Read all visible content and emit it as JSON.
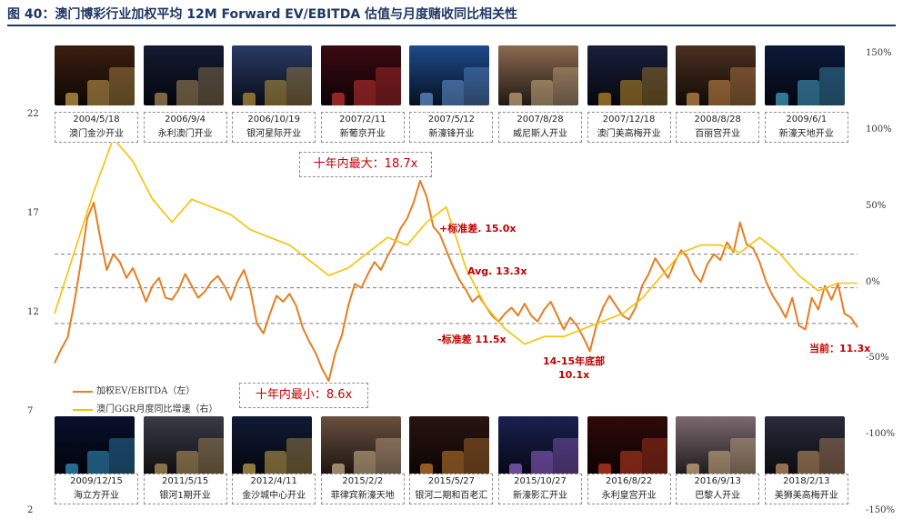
{
  "figure": {
    "title": "图 40：澳门博彩行业加权平均 12M Forward EV/EBITDA 估值与月度赌收同比相关性"
  },
  "photos_top": [
    {
      "date": "2004/5/18",
      "name": "澳门金沙开业",
      "color": "#3a1f0f",
      "light": "#ffcc66"
    },
    {
      "date": "2006/9/4",
      "name": "永利澳门开业",
      "color": "#141a33",
      "light": "#d8b070"
    },
    {
      "date": "2006/10/19",
      "name": "银河星际开业",
      "color": "#2a3a66",
      "light": "#e8b640"
    },
    {
      "date": "2007/2/11",
      "name": "新葡京开业",
      "color": "#3b0a12",
      "light": "#ff4040"
    },
    {
      "date": "2007/5/12",
      "name": "新濠锋开业",
      "color": "#1c4a8a",
      "light": "#7fb6ff"
    },
    {
      "date": "2007/8/28",
      "name": "威尼斯人开业",
      "color": "#8a6a50",
      "light": "#f0d0a0"
    },
    {
      "date": "2007/12/18",
      "name": "澳门美高梅开业",
      "color": "#1a1f3a",
      "light": "#f0b030"
    },
    {
      "date": "2008/8/28",
      "name": "百丽宫开业",
      "color": "#4a3020",
      "light": "#ffb060"
    },
    {
      "date": "2009/6/1",
      "name": "新濠天地开业",
      "color": "#0c1a3a",
      "light": "#5ad0ff"
    }
  ],
  "photos_bottom": [
    {
      "date": "2009/12/15",
      "name": "海立方开业",
      "color": "#08102a",
      "light": "#40c0ff"
    },
    {
      "date": "2011/5/15",
      "name": "银河1期开业",
      "color": "#3a3a46",
      "light": "#e8c070"
    },
    {
      "date": "2012/4/11",
      "name": "金沙城中心开业",
      "color": "#101a36",
      "light": "#ffd060"
    },
    {
      "date": "2015/2/2",
      "name": "菲律宾新濠天地",
      "color": "#6a5040",
      "light": "#ffe0b0"
    },
    {
      "date": "2015/5/27",
      "name": "银河二期和百老汇",
      "color": "#2a1410",
      "light": "#ffa040"
    },
    {
      "date": "2015/10/27",
      "name": "新濠影汇开业",
      "color": "#1a2050",
      "light": "#c080ff"
    },
    {
      "date": "2016/8/22",
      "name": "永利皇宫开业",
      "color": "#300a08",
      "light": "#ff5030"
    },
    {
      "date": "2016/9/13",
      "name": "巴黎人开业",
      "color": "#7a6a70",
      "light": "#ffd8a0"
    },
    {
      "date": "2018/2/13",
      "name": "美狮美高梅开业",
      "color": "#2a2a3a",
      "light": "#ffc080"
    }
  ],
  "annotations": {
    "max_label": "十年内最大：18.7x",
    "min_label": "十年内最小：8.6x",
    "plus_sd": "+标准差. 15.0x",
    "avg": "Avg. 13.3x",
    "minus_sd": "-标准差 11.5x",
    "bottom_line1": "14-15年底部",
    "bottom_line2": "10.1x",
    "current": "当前：11.3x"
  },
  "colors": {
    "ev": "#e67e22",
    "ggr": "#f5c200",
    "caption_red": "#c00000",
    "title": "#1f3864",
    "ref_line": "#7f7f7f"
  },
  "legend": {
    "ev_label": "加权EV/EBITDA（左）",
    "ggr_label": "澳门GGR月度同比增速（右）"
  },
  "chart_data": {
    "type": "line",
    "title": "",
    "xlabel": "",
    "x_range": [
      "2009-01",
      "2019-04"
    ],
    "y_left": {
      "ticks": [
        22,
        17,
        12,
        7,
        2
      ],
      "ylim": [
        2,
        22
      ]
    },
    "y_right": {
      "ticks": [
        "150%",
        "100%",
        "50%",
        "0%",
        "-50%",
        "-100%",
        "-150%"
      ],
      "ylim": [
        -150,
        150
      ]
    },
    "reference_lines": [
      {
        "name": "+标准差",
        "value": 15.0,
        "axis": "left"
      },
      {
        "name": "Avg.",
        "value": 13.3,
        "axis": "left"
      },
      {
        "name": "-标准差",
        "value": 11.5,
        "axis": "left"
      }
    ],
    "series": [
      {
        "name": "加权EV/EBITDA（左）",
        "axis": "left",
        "x": [
          "2009-01",
          "2009-02",
          "2009-03",
          "2009-04",
          "2009-05",
          "2009-06",
          "2009-07",
          "2009-08",
          "2009-09",
          "2009-10",
          "2009-11",
          "2009-12",
          "2010-01",
          "2010-02",
          "2010-03",
          "2010-04",
          "2010-05",
          "2010-06",
          "2010-07",
          "2010-08",
          "2010-09",
          "2010-10",
          "2010-11",
          "2010-12",
          "2011-01",
          "2011-02",
          "2011-03",
          "2011-04",
          "2011-05",
          "2011-06",
          "2011-07",
          "2011-08",
          "2011-09",
          "2011-10",
          "2011-11",
          "2011-12",
          "2012-01",
          "2012-02",
          "2012-03",
          "2012-04",
          "2012-05",
          "2012-06",
          "2012-07",
          "2012-08",
          "2012-09",
          "2012-10",
          "2012-11",
          "2012-12",
          "2013-01",
          "2013-02",
          "2013-03",
          "2013-04",
          "2013-05",
          "2013-06",
          "2013-07",
          "2013-08",
          "2013-09",
          "2013-10",
          "2013-11",
          "2013-12",
          "2014-01",
          "2014-02",
          "2014-03",
          "2014-04",
          "2014-05",
          "2014-06",
          "2014-07",
          "2014-08",
          "2014-09",
          "2014-10",
          "2014-11",
          "2014-12",
          "2015-01",
          "2015-02",
          "2015-03",
          "2015-04",
          "2015-05",
          "2015-06",
          "2015-07",
          "2015-08",
          "2015-09",
          "2015-10",
          "2015-11",
          "2015-12",
          "2016-01",
          "2016-02",
          "2016-03",
          "2016-04",
          "2016-05",
          "2016-06",
          "2016-07",
          "2016-08",
          "2016-09",
          "2016-10",
          "2016-11",
          "2016-12",
          "2017-01",
          "2017-02",
          "2017-03",
          "2017-04",
          "2017-05",
          "2017-06",
          "2017-07",
          "2017-08",
          "2017-09",
          "2017-10",
          "2017-11",
          "2017-12",
          "2018-01",
          "2018-02",
          "2018-03",
          "2018-04",
          "2018-05",
          "2018-06",
          "2018-07",
          "2018-08",
          "2018-09",
          "2018-10",
          "2018-11",
          "2018-12",
          "2019-01",
          "2019-02",
          "2019-03",
          "2019-04"
        ],
        "values": [
          9.5,
          10.2,
          10.8,
          12.5,
          14.5,
          16.8,
          17.6,
          15.8,
          14.2,
          15.0,
          14.6,
          13.8,
          14.3,
          13.5,
          12.6,
          13.4,
          13.8,
          12.8,
          12.7,
          13.2,
          14.0,
          13.4,
          12.8,
          13.1,
          13.6,
          13.9,
          13.4,
          12.7,
          13.6,
          14.2,
          13.2,
          11.5,
          11.0,
          12.0,
          12.9,
          12.6,
          13.0,
          12.4,
          11.3,
          10.6,
          10.0,
          9.2,
          8.6,
          10.0,
          10.9,
          12.4,
          13.5,
          13.3,
          14.0,
          14.6,
          14.2,
          14.9,
          15.5,
          16.3,
          16.8,
          17.6,
          18.7,
          17.9,
          16.4,
          16.0,
          15.2,
          14.4,
          13.7,
          13.2,
          12.6,
          12.9,
          12.4,
          11.9,
          11.6,
          12.0,
          12.3,
          11.9,
          12.5,
          11.9,
          11.6,
          12.2,
          12.6,
          11.9,
          11.2,
          11.8,
          11.4,
          10.8,
          10.1,
          11.4,
          12.3,
          12.9,
          12.4,
          11.9,
          11.7,
          12.3,
          13.4,
          14.0,
          14.8,
          14.3,
          13.8,
          14.6,
          15.2,
          14.8,
          14.0,
          13.6,
          14.5,
          15.0,
          14.7,
          15.6,
          15.1,
          16.6,
          15.5,
          15.3,
          14.6,
          13.6,
          12.9,
          12.4,
          11.8,
          12.8,
          11.4,
          11.2,
          12.8,
          12.2,
          13.4,
          12.7,
          13.5,
          12.0,
          11.8,
          11.3
        ]
      },
      {
        "name": "澳门GGR月度同比增速（右）",
        "axis": "right",
        "x": [
          "2009-01",
          "2009-04",
          "2009-07",
          "2009-10",
          "2010-01",
          "2010-04",
          "2010-07",
          "2010-10",
          "2011-01",
          "2011-04",
          "2011-07",
          "2011-10",
          "2012-01",
          "2012-04",
          "2012-07",
          "2012-10",
          "2013-01",
          "2013-04",
          "2013-07",
          "2013-10",
          "2014-01",
          "2014-04",
          "2014-07",
          "2014-10",
          "2015-01",
          "2015-04",
          "2015-07",
          "2015-10",
          "2016-01",
          "2016-04",
          "2016-07",
          "2016-10",
          "2017-01",
          "2017-04",
          "2017-07",
          "2017-10",
          "2018-01",
          "2018-04",
          "2018-07",
          "2018-10",
          "2019-01",
          "2019-04"
        ],
        "values": [
          -20,
          20,
          60,
          95,
          80,
          55,
          40,
          55,
          50,
          45,
          35,
          30,
          25,
          15,
          5,
          10,
          20,
          30,
          25,
          40,
          50,
          10,
          -15,
          -30,
          -40,
          -35,
          -35,
          -30,
          -25,
          -20,
          -10,
          5,
          20,
          25,
          25,
          20,
          30,
          20,
          5,
          -5,
          0,
          0
        ]
      }
    ],
    "legend_position": "bottom-left",
    "grid": false
  }
}
